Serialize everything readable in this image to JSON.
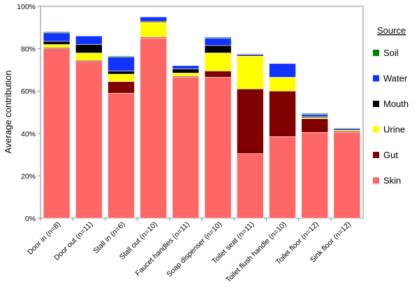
{
  "chart_data": {
    "type": "bar",
    "stacked": true,
    "categories": [
      "Door in (n=8)",
      "Door out (n=11)",
      "Stall in (n=6)",
      "Stall out (n=10)",
      "Faucet handles (n=11)",
      "Soap dispenser (n=10)",
      "Toilet seat (n=11)",
      "Toilet flush handle (n=10)",
      "Toilet floor (n=12)",
      "Sink floor (n=12)"
    ],
    "series": [
      {
        "name": "Skin",
        "color": "#ff6666",
        "values": [
          80,
          74,
          59,
          85,
          66.5,
          66.5,
          30.5,
          38.5,
          40.5,
          40.5
        ]
      },
      {
        "name": "Gut",
        "color": "#800000",
        "values": [
          0.5,
          0.5,
          5.5,
          0.5,
          0.5,
          3,
          30.5,
          21.5,
          6.5,
          0.5
        ]
      },
      {
        "name": "Urine",
        "color": "#ffff00",
        "values": [
          1.5,
          3.5,
          3.5,
          7,
          1.5,
          8.5,
          15.5,
          6.5,
          0.5,
          0.5
        ]
      },
      {
        "name": "Mouth",
        "color": "#000000",
        "values": [
          1.5,
          4,
          1.5,
          0.5,
          2,
          3.5,
          0.5,
          0,
          0.5,
          0.5
        ]
      },
      {
        "name": "Water",
        "color": "#1133ff",
        "values": [
          4,
          4,
          6.5,
          2,
          1.5,
          3.5,
          0.5,
          6.5,
          1,
          0.5
        ]
      },
      {
        "name": "Soil",
        "color": "#008000",
        "values": [
          0.5,
          0,
          0.5,
          0,
          0,
          0.5,
          0,
          0,
          0.5,
          0
        ]
      }
    ],
    "ylabel": "Average contribution",
    "yticks": [
      "0%",
      "20%",
      "40%",
      "60%",
      "80%",
      "100%"
    ],
    "ylim": [
      0,
      100
    ],
    "grid": false,
    "legend": {
      "title": "Source",
      "order": [
        "Soil",
        "Water",
        "Mouth",
        "Urine",
        "Gut",
        "Skin"
      ],
      "placement": "right"
    }
  }
}
